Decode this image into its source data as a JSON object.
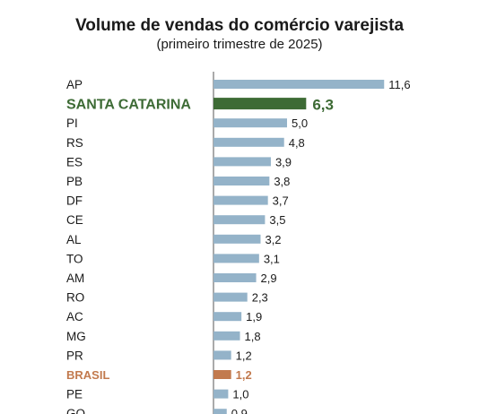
{
  "chart_data": {
    "type": "bar",
    "orientation": "horizontal",
    "title": "Volume de vendas do comércio varejista",
    "subtitle": "(primeiro trimestre de 2025)",
    "categories": [
      "AP",
      "SANTA CATARINA",
      "PI",
      "RS",
      "ES",
      "PB",
      "DF",
      "CE",
      "AL",
      "TO",
      "AM",
      "RO",
      "AC",
      "MG",
      "PR",
      "BRASIL",
      "PE",
      "GO"
    ],
    "values": [
      11.6,
      6.3,
      5.0,
      4.8,
      3.9,
      3.8,
      3.7,
      3.5,
      3.2,
      3.1,
      2.9,
      2.3,
      1.9,
      1.8,
      1.2,
      1.2,
      1.0,
      0.9
    ],
    "value_labels": [
      "11,6",
      "6,3",
      "5,0",
      "4,8",
      "3,9",
      "3,8",
      "3,7",
      "3,5",
      "3,2",
      "3,1",
      "2,9",
      "2,3",
      "1,9",
      "1,8",
      "1,2",
      "1,2",
      "1,0",
      "0,9"
    ],
    "highlight": {
      "SANTA CATARINA": "#3d6b35",
      "BRASIL": "#c27a4e"
    },
    "colors": {
      "bar": "#94b3c9",
      "axis": "#555555",
      "label": "#1a1a1a"
    }
  }
}
